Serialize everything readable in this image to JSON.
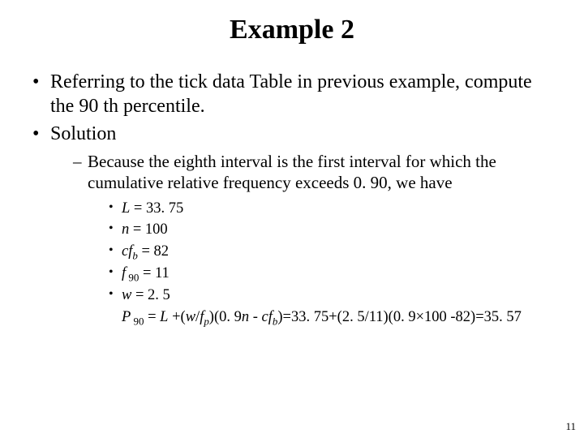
{
  "title": "Example 2",
  "bullets": {
    "b1": "Referring to the tick data Table in previous example, compute the 90 th percentile.",
    "b2": "Solution",
    "sub1": "Because the eighth interval is the first interval for which the cumulative relative frequency exceeds 0. 90, we have",
    "v1_pre": "L",
    "v1_post": " = 33. 75",
    "v2_pre": "n",
    "v2_post": " = 100",
    "v3_pre": "cf",
    "v3_sub": "b",
    "v3_post": " = 82",
    "v4_pre": "f",
    "v4_sub": " 90",
    "v4_post": " = 11",
    "v5_pre": "w",
    "v5_post": " = 2. 5",
    "formula": {
      "P": "P",
      "P_sub": " 90",
      "eq1": " = ",
      "L": "L",
      "plus1": " +(",
      "w": "w",
      "slash": "/",
      "f": "f",
      "f_sub": "p",
      "close1": ")(0. 9",
      "n": "n",
      "minus": " - ",
      "cf": "cf",
      "cf_sub": "b",
      "rhs": ")=33. 75+(2. 5/11)(0. 9×100 -82)=35. 57"
    }
  },
  "pagenum": "11"
}
